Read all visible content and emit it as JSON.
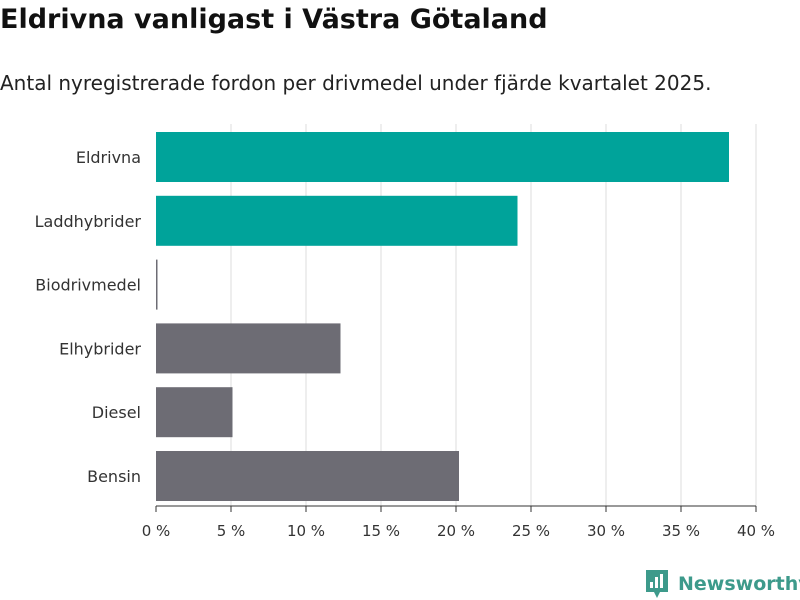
{
  "brand": {
    "name": "Newsworthy",
    "color": "#3d9a8b"
  },
  "chart_data": {
    "type": "bar",
    "orientation": "horizontal",
    "title": "Eldrivna vanligast i Västra Götaland",
    "subtitle": "Antal nyregistrerade fordon per drivmedel under fjärde kvartalet 2025.",
    "categories": [
      "Eldrivna",
      "Laddhybrider",
      "Biodrivmedel",
      "Elhybrider",
      "Diesel",
      "Bensin"
    ],
    "values": [
      38.2,
      24.1,
      0.1,
      12.3,
      5.1,
      20.2
    ],
    "colors": [
      "#00a39a",
      "#00a39a",
      "#6d6c74",
      "#6d6c74",
      "#6d6c74",
      "#6d6c74"
    ],
    "xlim": [
      0,
      40
    ],
    "xticks": [
      0,
      5,
      10,
      15,
      20,
      25,
      30,
      35,
      40
    ],
    "xtick_labels": [
      "0 %",
      "5 %",
      "10 %",
      "15 %",
      "20 %",
      "25 %",
      "30 %",
      "35 %",
      "40 %"
    ],
    "xlabel": "",
    "ylabel": "",
    "grid": true
  }
}
